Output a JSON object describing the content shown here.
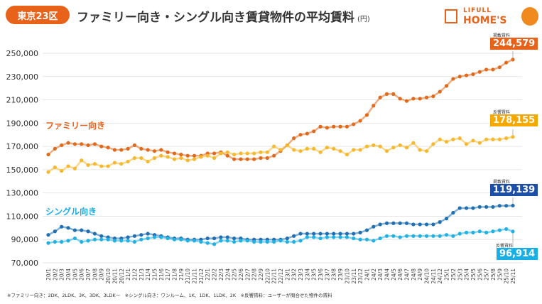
{
  "header": {
    "region_badge": "東京23区",
    "title": "ファミリー向き・シングル向き賃貸物件の平均賃料",
    "unit": "(円)"
  },
  "logo": {
    "line1": "LIFULL",
    "line2": "HOME'S"
  },
  "footnote": "※ファミリー向き：2DK、2LDK、3K、3DK、3LDK〜　※シングル向き：ワンルーム、1K、1DK、1LDK、2K　※反響賃料：ユーザーが問合せた物件の賃料",
  "series_labels": {
    "family": "ファミリー向き",
    "single": "シングル向き"
  },
  "callouts": [
    {
      "caption": "掲載賃料",
      "value": "244,579",
      "color": "#e8621a"
    },
    {
      "caption": "反響賃料",
      "value": "178,155",
      "color": "#f5a900"
    },
    {
      "caption": "掲載賃料",
      "value": "119,139",
      "color": "#1d4fa8"
    },
    {
      "caption": "反響賃料",
      "value": "96,914",
      "color": "#18aee6"
    }
  ],
  "chart_data": {
    "type": "line",
    "ylim": [
      70000,
      250000
    ],
    "yticks": [
      70000,
      90000,
      110000,
      130000,
      150000,
      170000,
      190000,
      210000,
      230000,
      250000
    ],
    "ytick_labels": [
      "70,000",
      "90,000",
      "110,000",
      "130,000",
      "150,000",
      "170,000",
      "190,000",
      "210,000",
      "230,000",
      "250,000"
    ],
    "grid": true,
    "x": [
      "20/1",
      "20/2",
      "20/3",
      "20/4",
      "20/5",
      "20/6",
      "20/7",
      "20/8",
      "20/9",
      "20/10",
      "20/11",
      "20/12",
      "21/1",
      "21/2",
      "21/3",
      "21/4",
      "21/5",
      "21/6",
      "21/7",
      "21/8",
      "21/9",
      "21/10",
      "21/11",
      "21/12",
      "22/1",
      "22/2",
      "22/3",
      "22/4",
      "22/5",
      "22/6",
      "22/7",
      "22/8",
      "22/9",
      "22/10",
      "22/11",
      "22/12",
      "23/1",
      "23/2",
      "23/3",
      "23/4",
      "23/5",
      "23/6",
      "23/7",
      "23/8",
      "23/9",
      "23/10",
      "23/11",
      "23/12",
      "24/1",
      "24/2",
      "24/3",
      "24/4",
      "24/5",
      "24/6",
      "24/7",
      "24/8",
      "24/9",
      "24/10",
      "24/11",
      "24/12",
      "25/1",
      "25/2",
      "25/3",
      "25/4",
      "25/5",
      "25/6",
      "25/7",
      "25/8",
      "25/9",
      "25/10",
      "25/11"
    ],
    "series": [
      {
        "color": "#e06a1c",
        "values": [
          163000,
          168000,
          171000,
          173000,
          172000,
          172000,
          171000,
          172000,
          170000,
          169000,
          167000,
          167000,
          168000,
          171000,
          168000,
          167000,
          166000,
          167000,
          165000,
          164000,
          163000,
          162000,
          162000,
          162000,
          164000,
          164000,
          165000,
          162000,
          159000,
          159000,
          159000,
          159000,
          160000,
          160000,
          162000,
          166000,
          171000,
          177000,
          180000,
          181000,
          183000,
          187000,
          186000,
          187000,
          187000,
          187000,
          189000,
          192000,
          197000,
          205000,
          212000,
          215000,
          215000,
          211000,
          209000,
          211000,
          211000,
          212000,
          213000,
          217000,
          222000,
          228000,
          230000,
          231000,
          232000,
          234000,
          236000,
          236000,
          238000,
          242000,
          244579
        ]
      },
      {
        "color": "#f5b82e",
        "values": [
          148000,
          152000,
          149000,
          153000,
          151000,
          158000,
          154000,
          155000,
          153000,
          153000,
          156000,
          155000,
          157000,
          160000,
          160000,
          157000,
          160000,
          162000,
          161000,
          159000,
          160000,
          158000,
          159000,
          161000,
          162000,
          160000,
          164000,
          165000,
          163000,
          164000,
          164000,
          164000,
          165000,
          165000,
          170000,
          167000,
          171000,
          167000,
          166000,
          168000,
          168000,
          165000,
          169000,
          168000,
          166000,
          163000,
          167000,
          167000,
          170000,
          171000,
          170000,
          166000,
          169000,
          171000,
          169000,
          173000,
          167000,
          166000,
          172000,
          176000,
          174000,
          176000,
          177000,
          172000,
          175000,
          173000,
          176000,
          176000,
          176000,
          177000,
          178155
        ]
      },
      {
        "color": "#1f6fb2",
        "values": [
          94000,
          97000,
          101000,
          100000,
          98000,
          98000,
          97000,
          95000,
          93000,
          92000,
          91000,
          91000,
          92000,
          93000,
          94000,
          95000,
          94000,
          93000,
          92000,
          91000,
          91000,
          90000,
          90000,
          90000,
          91000,
          91000,
          92000,
          92000,
          91000,
          91000,
          90000,
          90000,
          90000,
          90000,
          90000,
          90000,
          91000,
          93000,
          95000,
          95000,
          95000,
          95000,
          95000,
          95000,
          95000,
          95000,
          95000,
          96000,
          98000,
          101000,
          103000,
          104000,
          104000,
          104000,
          104000,
          103000,
          103000,
          103000,
          103000,
          105000,
          108000,
          113000,
          117000,
          117000,
          117000,
          118000,
          118000,
          118000,
          119000,
          119000,
          119139
        ]
      },
      {
        "color": "#21b1e2",
        "values": [
          87000,
          88000,
          88000,
          89000,
          91000,
          88000,
          89000,
          90000,
          90000,
          90000,
          89000,
          89000,
          89000,
          88000,
          90000,
          91000,
          92000,
          92000,
          91000,
          90000,
          90000,
          89000,
          89000,
          88000,
          87000,
          86000,
          89000,
          89000,
          88000,
          89000,
          89000,
          88000,
          88000,
          88000,
          88000,
          89000,
          88000,
          88000,
          89000,
          92000,
          92000,
          91000,
          92000,
          92000,
          92000,
          92000,
          91000,
          90000,
          90000,
          89000,
          91000,
          93000,
          93000,
          92000,
          93000,
          93000,
          93000,
          93000,
          93000,
          93000,
          94000,
          93000,
          95000,
          96000,
          96000,
          97000,
          96000,
          97000,
          98000,
          99000,
          96914
        ]
      }
    ]
  }
}
